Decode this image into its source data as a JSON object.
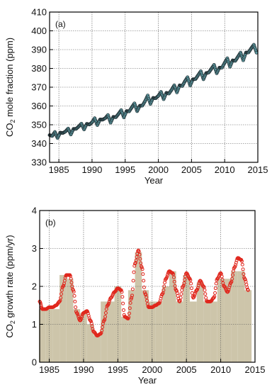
{
  "colors": {
    "keeling_fill": "#5f9ea6",
    "keeling_stroke": "#1f2a2e",
    "growth_line": "#e0261c",
    "bar_fill": "#cdc5aa",
    "frame": "#000000",
    "grid": "#555555"
  },
  "chart_data": [
    {
      "type": "scatter",
      "panel": "(a)",
      "title": "",
      "xlabel": "Year",
      "ylabel": {
        "pre": "CO",
        "sub": "2",
        "post": " mole fraction (ppm)"
      },
      "xlim": [
        1983.6,
        2015
      ],
      "ylim": [
        330,
        410
      ],
      "xticks": [
        1985,
        1990,
        1995,
        2000,
        2005,
        2010,
        2015
      ],
      "yticks": [
        330,
        340,
        350,
        360,
        370,
        380,
        390,
        400,
        410
      ],
      "grid": true,
      "series": [
        {
          "x": [
            1983.6,
            1984.0,
            1984.4,
            1984.8,
            1985.2,
            1985.6,
            1986.0,
            1986.4,
            1986.8,
            1987.2,
            1987.6,
            1988.0,
            1988.4,
            1988.8,
            1989.2,
            1989.6,
            1990.0,
            1990.4,
            1990.8,
            1991.2,
            1991.6,
            1992.0,
            1992.4,
            1992.8,
            1993.2,
            1993.6,
            1994.0,
            1994.4,
            1994.8,
            1995.2,
            1995.6,
            1996.0,
            1996.4,
            1996.8,
            1997.2,
            1997.6,
            1998.0,
            1998.4,
            1998.8,
            1999.2,
            1999.6,
            2000.0,
            2000.4,
            2000.8,
            2001.2,
            2001.6,
            2002.0,
            2002.4,
            2002.8,
            2003.2,
            2003.6,
            2004.0,
            2004.4,
            2004.8,
            2005.2,
            2005.6,
            2006.0,
            2006.4,
            2006.8,
            2007.2,
            2007.6,
            2008.0,
            2008.4,
            2008.8,
            2009.2,
            2009.6,
            2010.0,
            2010.4,
            2010.8,
            2011.2,
            2011.6,
            2012.0,
            2012.4,
            2012.8,
            2013.2,
            2013.6,
            2014.0,
            2014.4,
            2014.8
          ],
          "y": [
            344.5,
            344.0,
            346.2,
            342.9,
            345.8,
            345.6,
            346.4,
            348.0,
            344.8,
            347.8,
            347.8,
            349.1,
            350.6,
            347.5,
            350.5,
            350.1,
            351.3,
            353.5,
            349.8,
            352.8,
            352.7,
            353.5,
            355.2,
            351.1,
            354.2,
            354.0,
            355.8,
            357.8,
            353.9,
            357.3,
            357.1,
            359.3,
            361.4,
            357.2,
            360.1,
            360.2,
            362.6,
            365.6,
            361.1,
            364.3,
            364.1,
            365.4,
            367.5,
            363.6,
            367.0,
            366.6,
            368.6,
            371.0,
            367.2,
            371.0,
            370.6,
            373.1,
            375.3,
            370.9,
            374.2,
            374.3,
            376.4,
            378.5,
            374.2,
            377.5,
            377.8,
            379.8,
            381.9,
            377.4,
            380.4,
            380.4,
            383.0,
            385.4,
            380.9,
            384.3,
            384.0,
            386.2,
            388.4,
            384.3,
            388.4,
            388.5,
            390.7,
            392.6,
            388.4
          ]
        }
      ]
    },
    {
      "type": "bar",
      "panel": "(b)",
      "title": "",
      "xlabel": "Year",
      "ylabel": {
        "pre": "CO",
        "sub": "2",
        "post": " growth rate (ppm/yr)"
      },
      "xlim": [
        1983.6,
        2015
      ],
      "ylim": [
        0,
        4
      ],
      "xticks": [
        1985,
        1990,
        1995,
        2000,
        2005,
        2010,
        2015
      ],
      "yticks": [
        0,
        1,
        2,
        3,
        4
      ],
      "grid": true,
      "categories": [
        1984,
        1985,
        1986,
        1987,
        1988,
        1989,
        1990,
        1991,
        1992,
        1993,
        1994,
        1995,
        1996,
        1997,
        1998,
        1999,
        2000,
        2001,
        2002,
        2003,
        2004,
        2005,
        2006,
        2007,
        2008,
        2009,
        2010,
        2011,
        2012,
        2013,
        2014
      ],
      "values": [
        1.4,
        1.4,
        1.4,
        2.3,
        2.2,
        1.4,
        1.3,
        1.0,
        0.7,
        1.6,
        1.6,
        2.0,
        1.2,
        1.9,
        2.9,
        1.9,
        1.6,
        1.6,
        2.0,
        2.4,
        1.6,
        2.3,
        1.6,
        2.1,
        1.6,
        1.6,
        2.2,
        2.2,
        2.4,
        2.4,
        1.9
      ],
      "line": {
        "x": [
          1983.6,
          1984.0,
          1984.5,
          1985.0,
          1985.5,
          1986.0,
          1986.5,
          1987.0,
          1987.5,
          1988.0,
          1988.5,
          1989.0,
          1989.5,
          1990.0,
          1990.5,
          1991.0,
          1991.5,
          1992.0,
          1992.5,
          1993.0,
          1993.5,
          1994.0,
          1994.5,
          1995.0,
          1995.5,
          1996.0,
          1996.5,
          1997.0,
          1997.5,
          1998.0,
          1998.5,
          1999.0,
          1999.5,
          2000.0,
          2000.5,
          2001.0,
          2001.5,
          2002.0,
          2002.5,
          2003.0,
          2003.5,
          2004.0,
          2004.5,
          2005.0,
          2005.5,
          2006.0,
          2006.5,
          2007.0,
          2007.5,
          2008.0,
          2008.5,
          2009.0,
          2009.5,
          2010.0,
          2010.5,
          2011.0,
          2011.5,
          2012.0,
          2012.5,
          2013.0,
          2013.5,
          2014.0
        ],
        "y": [
          1.6,
          1.4,
          1.4,
          1.45,
          1.45,
          1.5,
          1.6,
          2.0,
          2.3,
          2.3,
          1.9,
          1.3,
          1.1,
          1.3,
          1.35,
          1.1,
          0.8,
          0.7,
          0.75,
          1.1,
          1.5,
          1.7,
          1.85,
          1.95,
          1.9,
          1.2,
          1.15,
          1.7,
          2.6,
          2.95,
          2.5,
          1.8,
          1.45,
          1.45,
          1.5,
          1.55,
          1.8,
          2.2,
          2.4,
          2.35,
          1.9,
          1.6,
          2.0,
          2.35,
          2.2,
          1.7,
          1.9,
          2.15,
          2.0,
          1.6,
          1.6,
          1.7,
          2.2,
          2.35,
          2.0,
          1.85,
          2.1,
          2.5,
          2.75,
          2.7,
          2.2,
          1.9
        ]
      }
    }
  ]
}
